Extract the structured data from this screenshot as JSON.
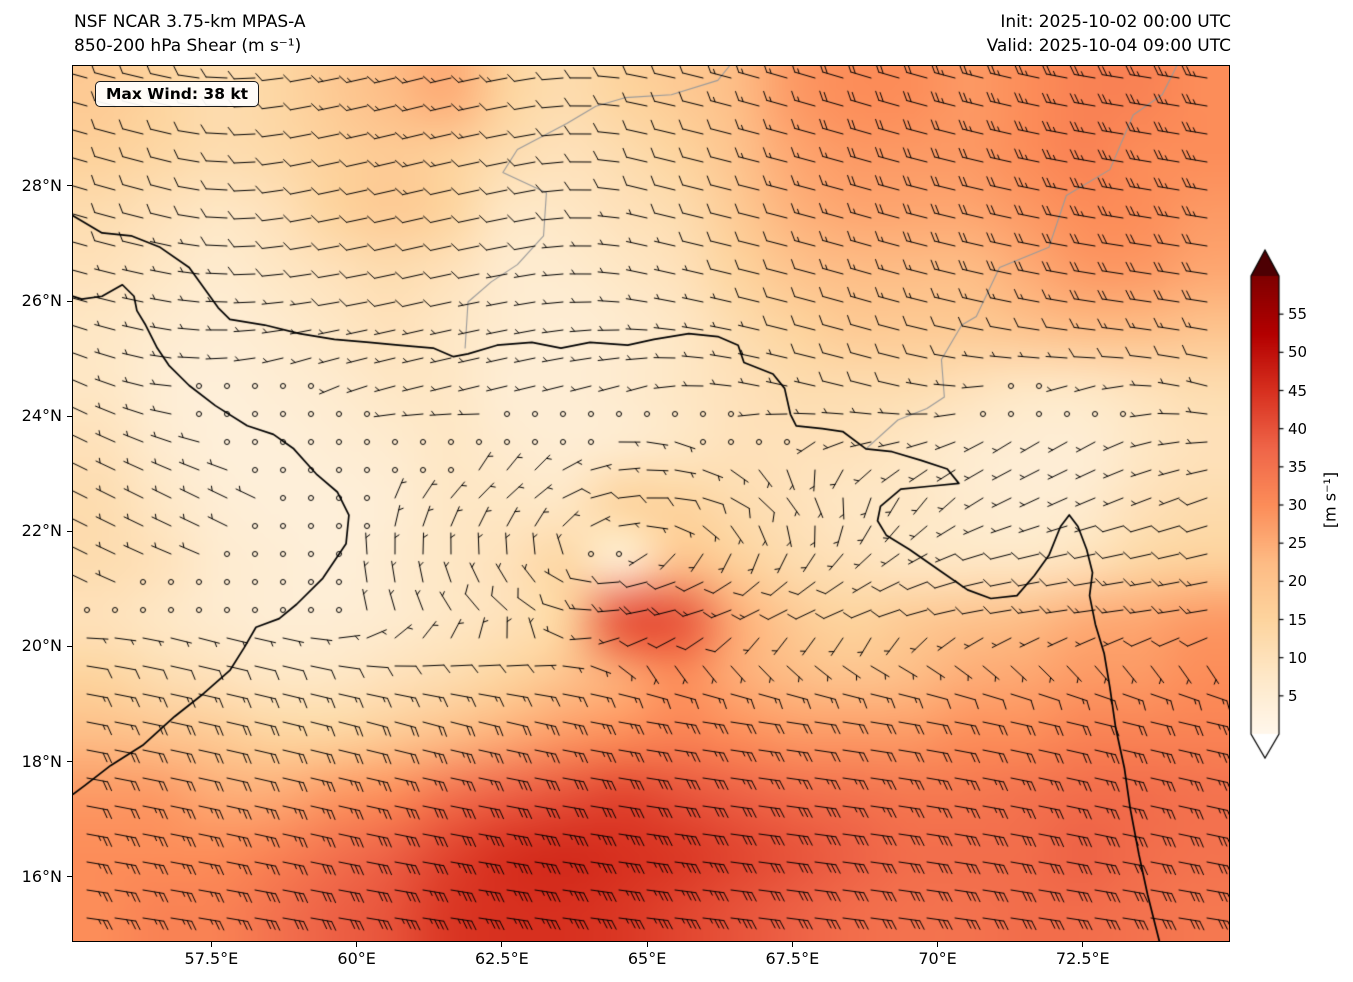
{
  "header": {
    "title_line1": "NSF NCAR 3.75-km MPAS-A",
    "title_line2": "850-200 hPa Shear (m s⁻¹)",
    "init_label": "Init: 2025-10-02 00:00 UTC",
    "valid_label": "Valid: 2025-10-04 09:00 UTC"
  },
  "annotation": {
    "max_wind": "Max Wind: 38 kt"
  },
  "axes": {
    "x_ticks": [
      {
        "label": "57.5°E",
        "lon": 57.5
      },
      {
        "label": "60°E",
        "lon": 60
      },
      {
        "label": "62.5°E",
        "lon": 62.5
      },
      {
        "label": "65°E",
        "lon": 65
      },
      {
        "label": "67.5°E",
        "lon": 67.5
      },
      {
        "label": "70°E",
        "lon": 70
      },
      {
        "label": "72.5°E",
        "lon": 72.5
      }
    ],
    "y_ticks": [
      {
        "label": "16°N",
        "lat": 16
      },
      {
        "label": "18°N",
        "lat": 18
      },
      {
        "label": "20°N",
        "lat": 20
      },
      {
        "label": "22°N",
        "lat": 22
      },
      {
        "label": "24°N",
        "lat": 24
      },
      {
        "label": "26°N",
        "lat": 26
      },
      {
        "label": "28°N",
        "lat": 28
      }
    ]
  },
  "colorbar": {
    "label": "[m s⁻¹]",
    "ticks": [
      5,
      10,
      15,
      20,
      25,
      30,
      35,
      40,
      45,
      50,
      55
    ],
    "vmin": 0,
    "vmax": 60,
    "under": "#ffffff",
    "over": "#4d0003",
    "stops": [
      [
        0.0,
        "#fff7ec"
      ],
      [
        0.125,
        "#fee8c8"
      ],
      [
        0.25,
        "#fdd49e"
      ],
      [
        0.375,
        "#fdbb84"
      ],
      [
        0.5,
        "#fc8d59"
      ],
      [
        0.625,
        "#ef6548"
      ],
      [
        0.75,
        "#d7301f"
      ],
      [
        0.875,
        "#b30000"
      ],
      [
        1.0,
        "#7f0000"
      ]
    ]
  },
  "map": {
    "extent": {
      "lon_min": 55.1,
      "lon_max": 75.0,
      "lat_min": 14.9,
      "lat_max": 30.1
    },
    "coastlines": [
      [
        [
          55.1,
          27.5
        ],
        [
          55.6,
          27.2
        ],
        [
          56.1,
          27.15
        ],
        [
          56.6,
          26.95
        ],
        [
          57.1,
          26.6
        ],
        [
          57.6,
          25.9
        ],
        [
          57.8,
          25.7
        ],
        [
          58.4,
          25.6
        ],
        [
          59.0,
          25.45
        ],
        [
          59.6,
          25.35
        ],
        [
          60.2,
          25.3
        ],
        [
          60.7,
          25.25
        ],
        [
          61.3,
          25.2
        ],
        [
          61.65,
          25.05
        ],
        [
          61.9,
          25.1
        ],
        [
          62.4,
          25.25
        ],
        [
          63.0,
          25.3
        ],
        [
          63.5,
          25.2
        ],
        [
          64.0,
          25.3
        ],
        [
          64.65,
          25.25
        ],
        [
          65.1,
          25.35
        ],
        [
          65.7,
          25.45
        ],
        [
          66.2,
          25.4
        ],
        [
          66.55,
          25.25
        ],
        [
          66.65,
          24.95
        ],
        [
          66.9,
          24.85
        ],
        [
          67.15,
          24.75
        ],
        [
          67.35,
          24.5
        ],
        [
          67.45,
          24.05
        ],
        [
          67.55,
          23.85
        ],
        [
          68.0,
          23.8
        ],
        [
          68.35,
          23.75
        ],
        [
          68.75,
          23.45
        ],
        [
          69.2,
          23.4
        ],
        [
          69.7,
          23.25
        ],
        [
          70.15,
          23.1
        ],
        [
          70.35,
          22.85
        ],
        [
          69.85,
          22.8
        ],
        [
          69.35,
          22.75
        ],
        [
          69.0,
          22.45
        ],
        [
          68.95,
          22.2
        ],
        [
          69.1,
          21.95
        ],
        [
          69.5,
          21.7
        ],
        [
          70.0,
          21.35
        ],
        [
          70.5,
          21.0
        ],
        [
          70.9,
          20.85
        ],
        [
          71.35,
          20.9
        ],
        [
          71.65,
          21.25
        ],
        [
          71.9,
          21.6
        ],
        [
          72.1,
          22.1
        ],
        [
          72.25,
          22.3
        ],
        [
          72.4,
          22.1
        ],
        [
          72.55,
          21.7
        ],
        [
          72.65,
          21.3
        ],
        [
          72.6,
          20.9
        ],
        [
          72.7,
          20.4
        ],
        [
          72.85,
          19.9
        ],
        [
          72.95,
          19.3
        ],
        [
          73.05,
          18.6
        ],
        [
          73.2,
          17.9
        ],
        [
          73.3,
          17.2
        ],
        [
          73.45,
          16.4
        ],
        [
          73.6,
          15.7
        ],
        [
          73.75,
          15.1
        ],
        [
          73.8,
          14.9
        ]
      ],
      [
        [
          55.1,
          26.1
        ],
        [
          55.25,
          26.05
        ],
        [
          55.6,
          26.1
        ],
        [
          55.95,
          26.3
        ],
        [
          56.15,
          26.1
        ],
        [
          56.2,
          25.85
        ],
        [
          56.35,
          25.6
        ],
        [
          56.55,
          25.2
        ],
        [
          56.75,
          24.9
        ],
        [
          57.1,
          24.55
        ],
        [
          57.55,
          24.2
        ],
        [
          58.1,
          23.85
        ],
        [
          58.55,
          23.7
        ],
        [
          58.9,
          23.45
        ],
        [
          59.3,
          23.0
        ],
        [
          59.65,
          22.7
        ],
        [
          59.85,
          22.3
        ],
        [
          59.8,
          21.8
        ],
        [
          59.4,
          21.2
        ],
        [
          58.95,
          20.75
        ],
        [
          58.65,
          20.5
        ],
        [
          58.25,
          20.35
        ],
        [
          58.05,
          20.0
        ],
        [
          57.8,
          19.6
        ],
        [
          57.35,
          19.2
        ],
        [
          56.85,
          18.8
        ],
        [
          56.3,
          18.3
        ],
        [
          55.75,
          17.95
        ],
        [
          55.3,
          17.6
        ],
        [
          55.1,
          17.45
        ]
      ]
    ],
    "borders": [
      [
        [
          61.85,
          25.2
        ],
        [
          61.9,
          26.0
        ],
        [
          62.3,
          26.35
        ],
        [
          62.75,
          26.65
        ],
        [
          63.2,
          27.15
        ],
        [
          63.25,
          27.9
        ],
        [
          62.5,
          28.25
        ],
        [
          62.75,
          28.65
        ],
        [
          63.6,
          29.1
        ],
        [
          64.1,
          29.4
        ],
        [
          64.6,
          29.55
        ],
        [
          65.4,
          29.6
        ],
        [
          66.2,
          29.85
        ],
        [
          66.4,
          30.1
        ]
      ],
      [
        [
          68.75,
          23.45
        ],
        [
          69.3,
          23.95
        ],
        [
          69.8,
          24.15
        ],
        [
          70.1,
          24.35
        ],
        [
          70.05,
          25.0
        ],
        [
          70.4,
          25.6
        ],
        [
          70.65,
          25.75
        ],
        [
          71.05,
          26.6
        ],
        [
          71.9,
          26.95
        ],
        [
          72.2,
          27.85
        ],
        [
          72.95,
          28.3
        ],
        [
          73.35,
          29.25
        ],
        [
          73.85,
          29.6
        ],
        [
          74.1,
          30.1
        ]
      ]
    ]
  },
  "chart_data": {
    "type": "heatmap",
    "title": "NSF NCAR 3.75-km MPAS-A — 850-200 hPa Shear",
    "units": "m s⁻¹",
    "legend_position": "right-colorbar",
    "grid": {
      "lons": [
        55.1,
        56.15,
        57.2,
        58.24,
        59.29,
        60.34,
        61.39,
        62.44,
        63.48,
        64.53,
        65.58,
        66.63,
        67.67,
        68.72,
        69.77,
        70.82,
        71.86,
        72.91,
        73.96,
        75.0
      ],
      "lats": [
        30.1,
        29.01,
        27.93,
        26.84,
        25.76,
        24.67,
        23.59,
        22.5,
        21.41,
        20.33,
        19.24,
        18.16,
        17.07,
        15.99,
        14.9
      ],
      "values": [
        [
          18,
          15,
          12,
          14,
          18,
          22,
          25,
          15,
          12,
          15,
          18,
          22,
          28,
          30,
          30,
          28,
          30,
          32,
          32,
          30
        ],
        [
          16,
          14,
          12,
          13,
          16,
          18,
          16,
          12,
          10,
          12,
          15,
          20,
          26,
          28,
          28,
          28,
          30,
          32,
          30,
          30
        ],
        [
          12,
          10,
          8,
          10,
          15,
          18,
          15,
          8,
          8,
          10,
          12,
          18,
          24,
          26,
          26,
          26,
          28,
          30,
          30,
          28
        ],
        [
          10,
          8,
          6,
          8,
          10,
          12,
          10,
          6,
          6,
          8,
          10,
          15,
          20,
          22,
          22,
          22,
          25,
          28,
          28,
          26
        ],
        [
          8,
          6,
          5,
          6,
          8,
          10,
          8,
          6,
          5,
          6,
          8,
          12,
          15,
          18,
          18,
          18,
          20,
          22,
          22,
          20
        ],
        [
          8,
          5,
          4,
          5,
          6,
          8,
          8,
          5,
          5,
          6,
          8,
          10,
          12,
          12,
          12,
          10,
          8,
          8,
          10,
          12
        ],
        [
          10,
          6,
          4,
          4,
          5,
          6,
          8,
          6,
          5,
          6,
          8,
          10,
          10,
          10,
          8,
          6,
          5,
          5,
          8,
          10
        ],
        [
          12,
          8,
          5,
          4,
          4,
          5,
          8,
          8,
          8,
          15,
          15,
          12,
          10,
          8,
          8,
          6,
          5,
          6,
          10,
          12
        ],
        [
          12,
          10,
          6,
          5,
          4,
          6,
          8,
          10,
          14,
          5,
          20,
          16,
          12,
          10,
          8,
          8,
          8,
          10,
          14,
          16
        ],
        [
          10,
          8,
          6,
          5,
          5,
          6,
          8,
          10,
          15,
          40,
          40,
          25,
          18,
          15,
          18,
          20,
          22,
          25,
          26,
          28
        ],
        [
          15,
          12,
          10,
          8,
          8,
          10,
          12,
          15,
          20,
          25,
          30,
          25,
          22,
          20,
          22,
          25,
          26,
          28,
          28,
          30
        ],
        [
          22,
          20,
          18,
          15,
          15,
          18,
          22,
          25,
          28,
          30,
          32,
          30,
          28,
          28,
          28,
          30,
          30,
          32,
          32,
          32
        ],
        [
          28,
          28,
          25,
          25,
          28,
          30,
          35,
          38,
          40,
          42,
          40,
          38,
          36,
          35,
          34,
          34,
          35,
          36,
          36,
          35
        ],
        [
          30,
          30,
          30,
          32,
          35,
          38,
          42,
          45,
          46,
          45,
          44,
          42,
          40,
          38,
          36,
          36,
          36,
          38,
          36,
          35
        ],
        [
          30,
          32,
          32,
          35,
          38,
          40,
          44,
          45,
          45,
          44,
          42,
          40,
          38,
          36,
          35,
          35,
          36,
          36,
          35,
          34
        ]
      ]
    },
    "wind_barbs": {
      "units": "kt",
      "max_wind_kt": 38,
      "lons": [
        55,
        57,
        59,
        61,
        63,
        65,
        67,
        69,
        71,
        73,
        75
      ],
      "lats": [
        30.1,
        28.1,
        26.2,
        24.4,
        22.5,
        20.6,
        18.8,
        16.9,
        14.9
      ],
      "u": [
        [
          14,
          10,
          12,
          16,
          12,
          10,
          14,
          20,
          24,
          25,
          24
        ],
        [
          10,
          8,
          10,
          13,
          10,
          8,
          12,
          18,
          22,
          24,
          24
        ],
        [
          7,
          6,
          8,
          9,
          6,
          5,
          8,
          14,
          18,
          20,
          20
        ],
        [
          4,
          2,
          1,
          4,
          4,
          3,
          5,
          8,
          1,
          1,
          6
        ],
        [
          6,
          4,
          2,
          -2,
          -6,
          -12,
          -6,
          2,
          4,
          5,
          8
        ],
        [
          2,
          1,
          -1,
          2,
          8,
          20,
          12,
          8,
          12,
          15,
          18
        ],
        [
          -16,
          -18,
          -16,
          -18,
          -22,
          -24,
          -20,
          -18,
          -18,
          -20,
          -22
        ],
        [
          -22,
          -24,
          -26,
          -30,
          -34,
          -33,
          -30,
          -28,
          -27,
          -28,
          -28
        ],
        [
          -24,
          -26,
          -30,
          -34,
          -36,
          -35,
          -32,
          -30,
          -28,
          -28,
          -27
        ]
      ],
      "v": [
        [
          -4,
          -2,
          2,
          4,
          2,
          -2,
          -4,
          -6,
          -6,
          -4,
          -4
        ],
        [
          -3,
          -2,
          2,
          3,
          2,
          -2,
          -3,
          -5,
          -5,
          -4,
          -4
        ],
        [
          -2,
          -1,
          1,
          2,
          1,
          -1,
          -2,
          -4,
          -4,
          -3,
          -3
        ],
        [
          -2,
          0,
          1,
          1,
          1,
          1,
          -1,
          -2,
          1,
          1,
          -2
        ],
        [
          -3,
          -2,
          -1,
          -3,
          -5,
          0,
          6,
          5,
          2,
          2,
          3
        ],
        [
          -1,
          0,
          0,
          -6,
          -6,
          4,
          6,
          3,
          2,
          2,
          3
        ],
        [
          3,
          4,
          4,
          5,
          5,
          4,
          3,
          3,
          4,
          5,
          5
        ],
        [
          4,
          5,
          6,
          6,
          6,
          5,
          4,
          4,
          5,
          6,
          6
        ],
        [
          3,
          4,
          5,
          5,
          5,
          4,
          4,
          4,
          4,
          4,
          4
        ]
      ]
    }
  }
}
